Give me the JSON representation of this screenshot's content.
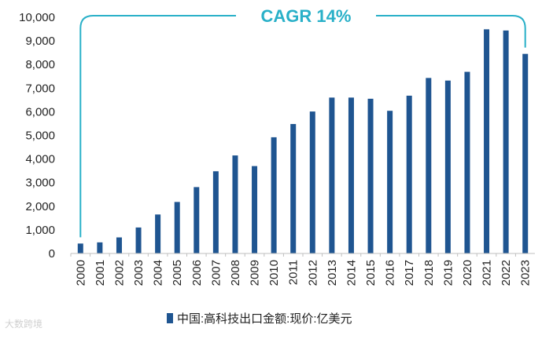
{
  "chart_data": {
    "type": "bar",
    "title": "",
    "xlabel": "",
    "ylabel": "",
    "ylim": [
      0,
      10000
    ],
    "yticks": [
      0,
      1000,
      2000,
      3000,
      4000,
      5000,
      6000,
      7000,
      8000,
      9000,
      10000
    ],
    "ytick_labels": [
      "0",
      "1,000",
      "2,000",
      "3,000",
      "4,000",
      "5,000",
      "6,000",
      "7,000",
      "8,000",
      "9,000",
      "10,000"
    ],
    "categories": [
      "2000",
      "2001",
      "2002",
      "2003",
      "2004",
      "2005",
      "2006",
      "2007",
      "2008",
      "2009",
      "2010",
      "2011",
      "2012",
      "2013",
      "2014",
      "2015",
      "2016",
      "2017",
      "2018",
      "2019",
      "2020",
      "2021",
      "2022",
      "2023"
    ],
    "series": [
      {
        "name": "中国:高科技出口金额:现价:亿美元",
        "color": "#1f5591",
        "values": [
          420,
          470,
          680,
          1100,
          1650,
          2180,
          2810,
          3480,
          4150,
          3700,
          4920,
          5480,
          6010,
          6600,
          6600,
          6550,
          6040,
          6680,
          7430,
          7320,
          7690,
          9490,
          9440,
          8450
        ]
      }
    ],
    "annotation": {
      "text": "CAGR 14%",
      "color": "#29b0c8"
    },
    "legend_position": "bottom-center",
    "grid": false
  },
  "watermark": "大数跨境"
}
